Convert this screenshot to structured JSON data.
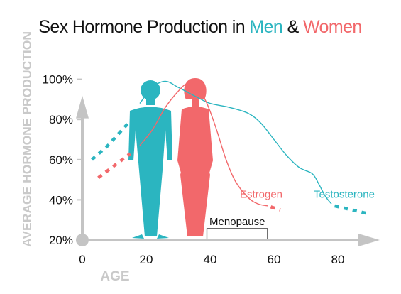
{
  "colors": {
    "men": "#2bb5c0",
    "women": "#f2686b",
    "axis": "#c4c4c4",
    "text": "#111111"
  },
  "chart_data": {
    "type": "line",
    "title": {
      "prefix": "Sex Hormone Production in ",
      "men": "Men",
      "joiner": " & ",
      "women": "Women"
    },
    "xlabel": "AGE",
    "ylabel": "AVERAGE HORMONE PRODUCTION",
    "xlim": [
      0,
      92
    ],
    "ylim": [
      20,
      106
    ],
    "x_ticks": [
      0,
      20,
      40,
      60,
      80
    ],
    "y_ticks": [
      20,
      40,
      60,
      80,
      100
    ],
    "y_tick_format": "{v}%",
    "grid": false,
    "series": [
      {
        "name": "Testosterone",
        "color_key": "men",
        "dotted": [
          [
            3,
            60
          ],
          [
            8,
            67
          ],
          [
            12,
            74
          ],
          [
            16,
            81
          ]
        ],
        "solid": [
          [
            18,
            88
          ],
          [
            22,
            96
          ],
          [
            26,
            99
          ],
          [
            30,
            96
          ],
          [
            36,
            91
          ],
          [
            40,
            88
          ],
          [
            46,
            86
          ],
          [
            52,
            83
          ],
          [
            56,
            78
          ],
          [
            60,
            70
          ],
          [
            64,
            62
          ],
          [
            68,
            56
          ],
          [
            72,
            53
          ],
          [
            74,
            48
          ],
          [
            76,
            42
          ],
          [
            78,
            38
          ]
        ],
        "dotted_tail": [
          [
            79,
            37
          ],
          [
            83,
            35.5
          ],
          [
            87,
            34
          ],
          [
            90,
            33
          ]
        ]
      },
      {
        "name": "Estrogen",
        "color_key": "women",
        "dotted": [
          [
            5,
            51
          ],
          [
            10,
            57
          ],
          [
            15,
            63
          ]
        ],
        "solid": [
          [
            18,
            67
          ],
          [
            22,
            75
          ],
          [
            26,
            86
          ],
          [
            30,
            94
          ],
          [
            33,
            98
          ],
          [
            36,
            96
          ],
          [
            39,
            88
          ],
          [
            42,
            75
          ],
          [
            45,
            60
          ],
          [
            48,
            49
          ],
          [
            52,
            41
          ],
          [
            55,
            38
          ],
          [
            58,
            37
          ]
        ],
        "dotted_tail": [
          [
            59,
            36.5
          ],
          [
            62,
            35
          ]
        ]
      }
    ],
    "annotations": [
      {
        "text": "Menopause",
        "type": "bracket",
        "x_start": 39,
        "x_end": 58
      },
      {
        "text": "Estrogen",
        "type": "series-label",
        "color_key": "women",
        "x": 56,
        "y": 41
      },
      {
        "text": "Testosterone",
        "type": "series-label",
        "color_key": "men",
        "x": 82,
        "y": 41
      }
    ],
    "figures": [
      {
        "name": "man-silhouette",
        "color_key": "men"
      },
      {
        "name": "woman-silhouette",
        "color_key": "women"
      }
    ]
  }
}
